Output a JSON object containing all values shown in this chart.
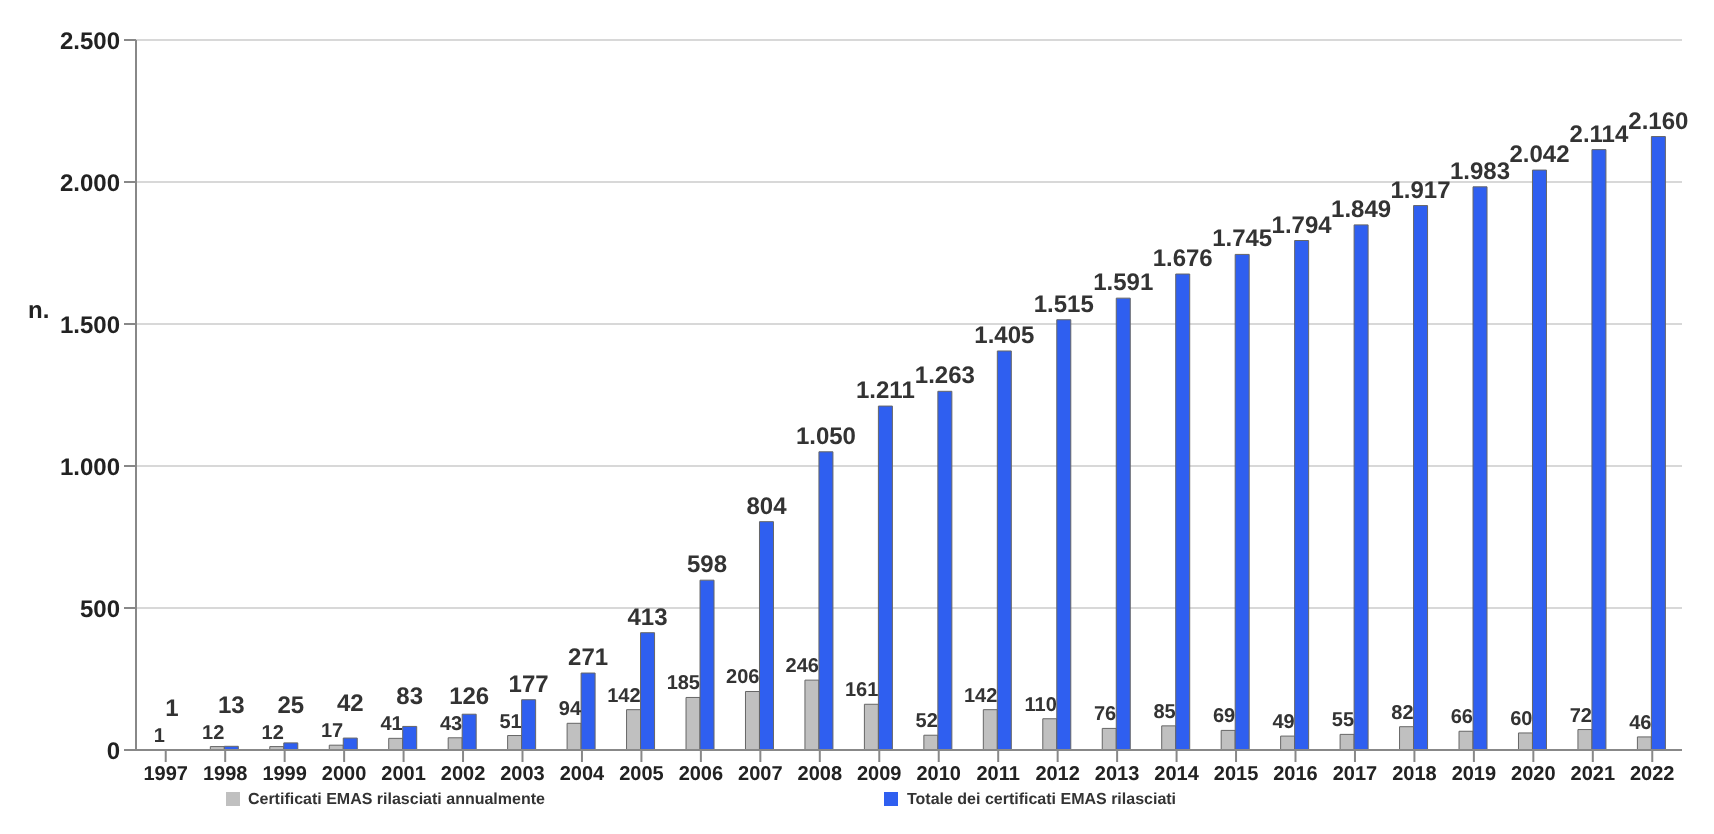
{
  "chart_data": {
    "type": "bar",
    "ylabel": "n.",
    "categories": [
      "1997",
      "1998",
      "1999",
      "2000",
      "2001",
      "2002",
      "2003",
      "2004",
      "2005",
      "2006",
      "2007",
      "2008",
      "2009",
      "2010",
      "2011",
      "2012",
      "2013",
      "2014",
      "2015",
      "2016",
      "2017",
      "2018",
      "2019",
      "2020",
      "2021",
      "2022"
    ],
    "series": [
      {
        "name": "Certificati EMAS rilasciati annualmente",
        "color": "#c0c0c0",
        "values": [
          1,
          12,
          12,
          17,
          41,
          43,
          51,
          94,
          142,
          185,
          206,
          246,
          161,
          52,
          142,
          110,
          76,
          85,
          69,
          49,
          55,
          82,
          66,
          60,
          72,
          46
        ],
        "value_labels": [
          "1",
          "12",
          "12",
          "17",
          "41",
          "43",
          "51",
          "94",
          "142",
          "185",
          "206",
          "246",
          "161",
          "52",
          "142",
          "110",
          "76",
          "85",
          "69",
          "49",
          "55",
          "82",
          "66",
          "60",
          "72",
          "46"
        ]
      },
      {
        "name": "Totale dei certificati EMAS rilasciati",
        "color": "#2f5ff0",
        "values": [
          1,
          13,
          25,
          42,
          83,
          126,
          177,
          271,
          413,
          598,
          804,
          1050,
          1211,
          1263,
          1405,
          1515,
          1591,
          1676,
          1745,
          1794,
          1849,
          1917,
          1983,
          2042,
          2114,
          2160
        ],
        "value_labels": [
          "1",
          "13",
          "25",
          "42",
          "83",
          "126",
          "177",
          "271",
          "413",
          "598",
          "804",
          "1.050",
          "1.211",
          "1.263",
          "1.405",
          "1.515",
          "1.591",
          "1.676",
          "1.745",
          "1.794",
          "1.849",
          "1.917",
          "1.983",
          "2.042",
          "2.114",
          "2.160"
        ]
      }
    ],
    "ylim": [
      0,
      2500
    ],
    "yticks": [
      0,
      {
        "value": 500,
        "label": "500"
      },
      {
        "value": 1000,
        "label": "1.000"
      },
      {
        "value": 1500,
        "label": "1.500"
      },
      {
        "value": 2000,
        "label": "2.000"
      },
      {
        "value": 2500,
        "label": "2.500"
      }
    ],
    "grid": "y",
    "legend": "bottom"
  }
}
